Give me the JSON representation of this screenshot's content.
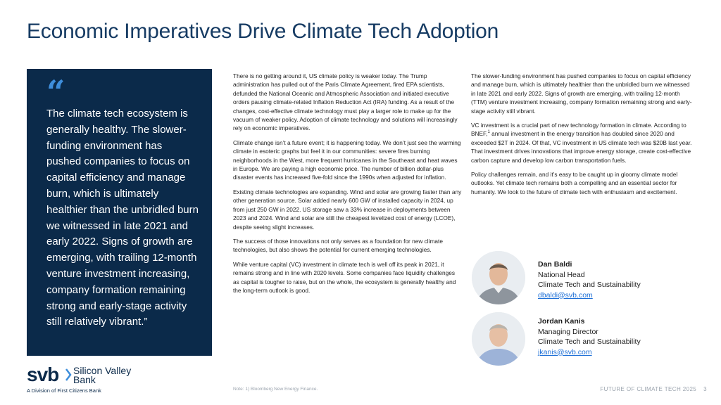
{
  "title": "Economic Imperatives Drive Climate Tech Adoption",
  "quote": {
    "text": "The climate tech ecosystem is generally healthy. The slower-funding environment has pushed companies to focus on capital efficiency and manage burn, which is ultimately healthier than the unbridled burn we witnessed in late 2021 and early 2022. Signs of growth are emerging, with trailing 12-month venture investment increasing, company formation remaining strong and early-stage activity still relatively vibrant.”"
  },
  "column1": {
    "p1": "There is no getting around it, US climate policy is weaker today. The Trump administration has pulled out of the Paris Climate Agreement, fired EPA scientists, defunded the National Oceanic and Atmospheric Association and initiated executive orders pausing climate-related Inflation Reduction Act (IRA) funding. As a result of the changes, cost-effective climate technology must play a larger role to make up for the vacuum of weaker policy. Adoption of climate technology and solutions will increasingly rely on economic imperatives.",
    "p2": "Climate change isn’t a future event; it is happening today. We don’t just see the warming climate in esoteric graphs but feel it in our communities: severe fires burning neighborhoods in the West, more frequent hurricanes in the Southeast and heat waves in Europe. We are paying a high economic price. The number of billion dollar-plus disaster events has increased five-fold since the 1990s when adjusted for inflation.",
    "p3": "Existing climate technologies are expanding. Wind and solar are growing faster than any other generation source. Solar added nearly 600 GW of installed capacity in 2024, up from just 250 GW in 2022. US storage saw a 33% increase in deployments between 2023 and 2024. Wind and solar are still the cheapest levelized cost of energy (LCOE), despite seeing slight increases.",
    "p4": "The success of those innovations not only serves as a foundation for new climate technologies, but also shows the potential for current emerging technologies.",
    "p5": "While venture capital (VC) investment in climate tech is well off its peak in 2021, it remains strong and in line with 2020 levels. Some companies face liquidity challenges as capital is tougher to raise, but on the whole, the ecosystem is generally healthy and the long-term outlook is good."
  },
  "column2": {
    "p1": "The slower-funding environment has pushed companies to focus on capital efficiency and manage burn, which is ultimately healthier than the unbridled burn we witnessed in late 2021 and early 2022. Signs of growth are emerging, with trailing 12-month (TTM) venture investment increasing, company formation remaining strong and early-stage activity still vibrant.",
    "p2_before": "VC investment is a crucial part of new technology formation in climate. According to BNEF,",
    "p2_sup": "1",
    "p2_after": " annual investment in the energy transition has doubled since 2020 and exceeded $2T in 2024. Of that, VC investment in US climate tech was $20B last year. That investment drives innovations that improve energy storage, create cost-effective carbon capture and develop low carbon transportation fuels.",
    "p3": "Policy challenges remain, and it’s easy to be caught up in gloomy climate model outlooks. Yet climate tech remains both a compelling and an essential sector for humanity. We look to the future of climate tech with enthusiasm and excitement."
  },
  "contacts": [
    {
      "name": "Dan Baldi",
      "role": "National Head",
      "dept": "Climate Tech and Sustainability",
      "email": "dbaldi@svb.com"
    },
    {
      "name": "Jordan Kanis",
      "role": "Managing Director",
      "dept": "Climate Tech and Sustainability",
      "email": "jkanis@svb.com"
    }
  ],
  "logo": {
    "mark": "svb",
    "line1": "Silicon Valley",
    "line2": "Bank",
    "division": "A Division of First Citizens Bank"
  },
  "footnote": "Note: 1) Bloomberg New Energy Finance.",
  "footer": {
    "label": "FUTURE OF CLIMATE TECH 2025",
    "page": "3"
  },
  "colors": {
    "title": "#163b63",
    "panel": "#0b2a4a",
    "quote_mark": "#3e8edb",
    "link": "#1d6fd6"
  }
}
